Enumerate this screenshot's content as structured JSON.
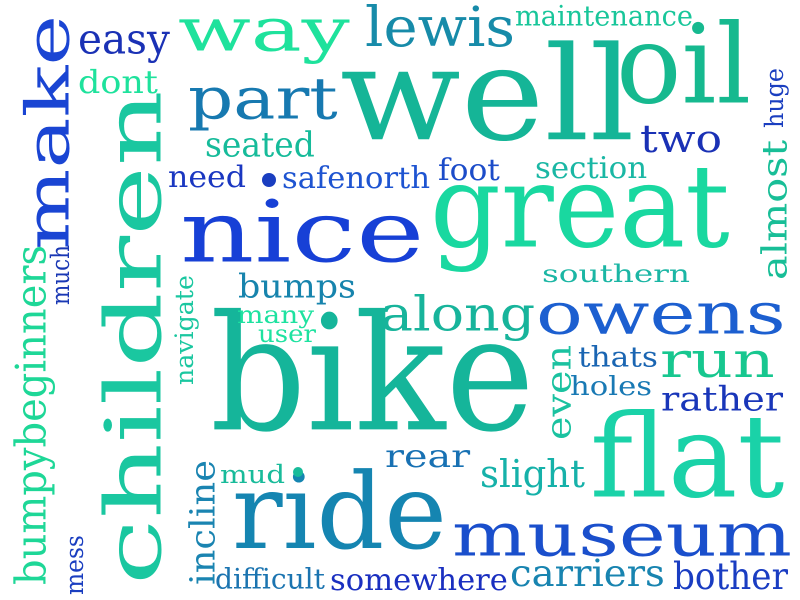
{
  "words": [
    {
      "text": "well",
      "color": "#15b597"
    },
    {
      "text": "bike",
      "color": "#15b59a"
    },
    {
      "text": "children",
      "color": "#1ac7a0"
    },
    {
      "text": "great",
      "color": "#19d8a0"
    },
    {
      "text": "nice",
      "color": "#1740d6"
    },
    {
      "text": "flat",
      "color": "#1ad2a8"
    },
    {
      "text": "ride",
      "color": "#1585b1"
    },
    {
      "text": "make",
      "color": "#1a45d3"
    },
    {
      "text": "oil",
      "color": "#16b98f"
    },
    {
      "text": "museum",
      "color": "#1a4fcc"
    },
    {
      "text": "owens",
      "color": "#1c5fd0"
    },
    {
      "text": "way",
      "color": "#1ee29c"
    },
    {
      "text": "part",
      "color": "#1779b0"
    },
    {
      "text": "run",
      "color": "#17c78f"
    },
    {
      "text": "along",
      "color": "#17b49b"
    },
    {
      "text": "lewis",
      "color": "#178ba9"
    },
    {
      "text": "bumpybeginners",
      "color": "#1ed797"
    },
    {
      "text": "easy",
      "color": "#1a31b5"
    },
    {
      "text": "two",
      "color": "#1a31b5"
    },
    {
      "text": "carriers",
      "color": "#1884b0"
    },
    {
      "text": "somewhere",
      "color": "#1a2fc0"
    },
    {
      "text": "bother",
      "color": "#1a3dc2"
    },
    {
      "text": "slight",
      "color": "#16b1a9"
    },
    {
      "text": "rear",
      "color": "#1871b3"
    },
    {
      "text": "rather",
      "color": "#1936b9"
    },
    {
      "text": "seated",
      "color": "#16bb9a"
    },
    {
      "text": "bumps",
      "color": "#1784ad"
    },
    {
      "text": "almost",
      "color": "#18be97"
    },
    {
      "text": "incline",
      "color": "#1a84b1"
    },
    {
      "text": "even",
      "color": "#1ac2a0"
    },
    {
      "text": "section",
      "color": "#1ab7a4"
    },
    {
      "text": "maintenance",
      "color": "#18c69a"
    },
    {
      "text": "dont",
      "color": "#1ee29c"
    },
    {
      "text": "safenorth",
      "color": "#1e54d1"
    },
    {
      "text": "foot",
      "color": "#1c4cc9"
    },
    {
      "text": "need",
      "color": "#1a37c1"
    },
    {
      "text": "southern",
      "color": "#1bb6a4"
    },
    {
      "text": "thats",
      "color": "#1a65b2"
    },
    {
      "text": "holes",
      "color": "#1979b4"
    },
    {
      "text": "difficult",
      "color": "#1b74b0"
    },
    {
      "text": "mud",
      "color": "#18bb9a"
    },
    {
      "text": "many",
      "color": "#1ee2a0"
    },
    {
      "text": "user",
      "color": "#1ee2a0"
    },
    {
      "text": "navigate",
      "color": "#1ac7a0"
    },
    {
      "text": "much",
      "color": "#1a38b4"
    },
    {
      "text": "mess",
      "color": "#1a3ec0"
    },
    {
      "text": "huge",
      "color": "#1a3ec0"
    }
  ]
}
